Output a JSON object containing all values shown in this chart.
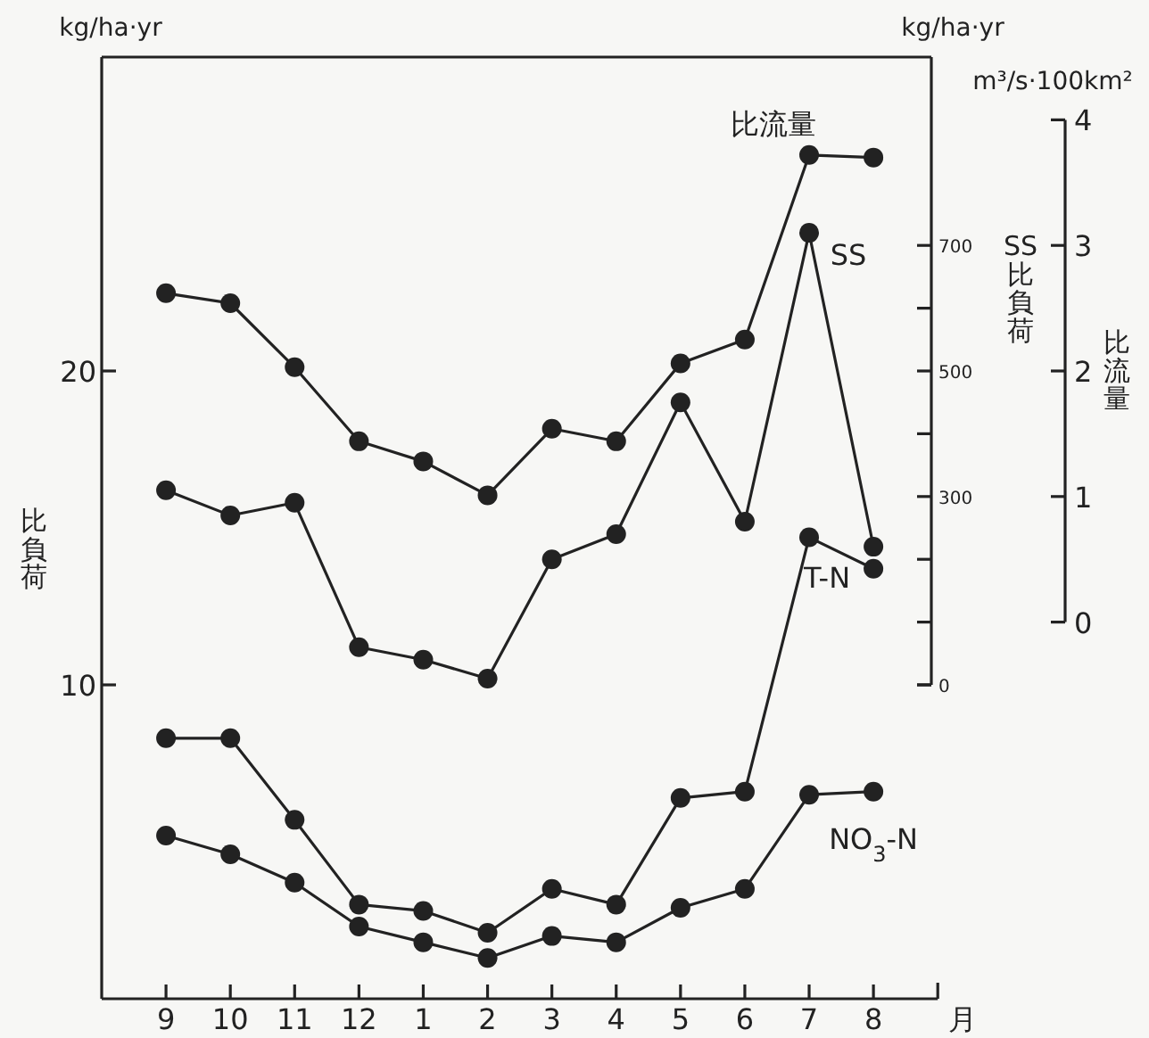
{
  "chart_data": {
    "type": "line",
    "ylabel": "比負荷",
    "y2label": "SS 比負荷",
    "y3label": "比流量",
    "xlabel": "月",
    "annotations": [
      "kg/ha·yr",
      "kg/ha·yr",
      "m³/s·100km²"
    ],
    "categories": [
      "9",
      "10",
      "11",
      "12",
      "1",
      "2",
      "3",
      "4",
      "5",
      "6",
      "7",
      "8"
    ],
    "ylim": [
      0,
      30
    ],
    "yticks": [
      10,
      20
    ],
    "y2lim": [
      -500,
      1000
    ],
    "y2ticks": [
      0,
      {
        "value": 100,
        "label": null
      },
      {
        "value": 200,
        "label": null
      },
      300,
      {
        "value": 400,
        "label": null
      },
      500,
      {
        "value": 600,
        "label": null
      },
      700
    ],
    "y3lim": [
      -3,
      4.5
    ],
    "y3ticks": [
      0,
      1,
      2,
      3,
      4
    ],
    "marker": "circle",
    "line_style": "solid",
    "grid": false,
    "series": [
      {
        "name": "比流量",
        "color": "#222222",
        "axis": "y3",
        "values": [
          2.62,
          2.54,
          2.03,
          1.44,
          1.28,
          1.01,
          1.54,
          1.44,
          2.06,
          2.25,
          3.72,
          3.7
        ]
      },
      {
        "name": "SS",
        "color": "#222222",
        "axis": "y2",
        "values": [
          310,
          270,
          290,
          60,
          40,
          10,
          200,
          240,
          450,
          260,
          720,
          220
        ]
      },
      {
        "name": "T-N",
        "color": "#222222",
        "values": [
          8.3,
          8.3,
          5.7,
          3.0,
          2.8,
          2.1,
          3.5,
          3.0,
          6.4,
          6.6,
          14.7,
          13.7
        ]
      },
      {
        "name": "NO$_{3}$-N",
        "color": "#222222",
        "values": [
          5.2,
          4.6,
          3.7,
          2.3,
          1.8,
          1.3,
          2.0,
          1.8,
          2.9,
          3.5,
          6.5,
          6.6
        ]
      }
    ]
  }
}
